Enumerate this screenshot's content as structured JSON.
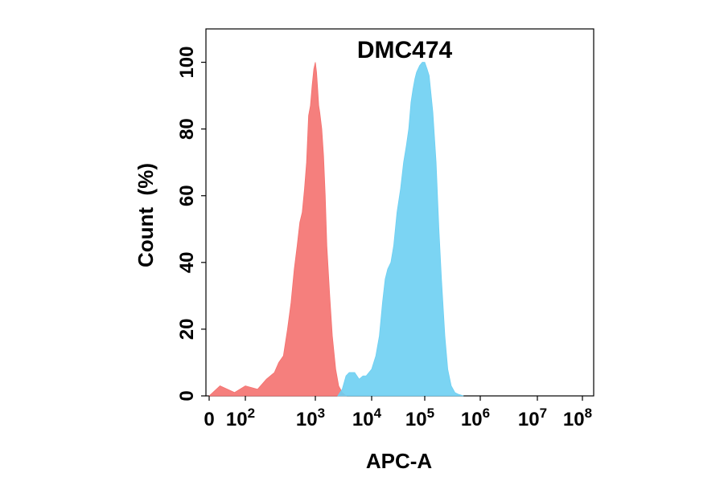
{
  "chart_data": {
    "type": "area",
    "title": "DMC474",
    "xlabel": "APC-A",
    "ylabel": "Count  (%)",
    "x_scale": "biexponential",
    "x_ticks": [
      {
        "value": 0,
        "base": "0",
        "exp": ""
      },
      {
        "value": 100,
        "base": "10",
        "exp": "2"
      },
      {
        "value": 1000,
        "base": "10",
        "exp": "3"
      },
      {
        "value": 10000,
        "base": "10",
        "exp": "4"
      },
      {
        "value": 100000,
        "base": "10",
        "exp": "5"
      },
      {
        "value": 1000000,
        "base": "10",
        "exp": "6"
      },
      {
        "value": 10000000,
        "base": "10",
        "exp": "7"
      },
      {
        "value": 100000000,
        "base": "10",
        "exp": "8"
      }
    ],
    "y_ticks": [
      "0",
      "20",
      "40",
      "60",
      "80",
      "100"
    ],
    "ylim": [
      0,
      110
    ],
    "grid": false,
    "legend": "none",
    "series": [
      {
        "color": "#f4716f",
        "x": [
          0,
          30,
          70,
          100,
          150,
          200,
          260,
          300,
          350,
          400,
          450,
          500,
          550,
          600,
          650,
          700,
          750,
          800,
          850,
          900,
          950,
          1000,
          1050,
          1100,
          1150,
          1200,
          1300,
          1400,
          1500,
          1600,
          1800,
          2000,
          2300,
          2600,
          3000,
          3500
        ],
        "y": [
          0,
          3,
          1,
          3,
          2,
          5,
          7,
          10,
          12,
          20,
          28,
          38,
          45,
          52,
          55,
          62,
          70,
          84,
          87,
          93,
          98,
          100,
          97,
          92,
          87,
          85,
          80,
          72,
          60,
          45,
          30,
          18,
          8,
          3,
          1,
          0
        ]
      },
      {
        "color": "#6dcff2",
        "x": [
          2500,
          3000,
          3500,
          4000,
          5000,
          6000,
          7000,
          8000,
          10000,
          12000,
          14000,
          16000,
          18000,
          20000,
          23000,
          26000,
          30000,
          35000,
          40000,
          45000,
          50000,
          55000,
          60000,
          65000,
          70000,
          80000,
          90000,
          100000,
          110000,
          120000,
          140000,
          160000,
          180000,
          200000,
          230000,
          260000,
          300000,
          350000,
          400000,
          500000
        ],
        "y": [
          0,
          2,
          6,
          7,
          7,
          5,
          6,
          6,
          8,
          12,
          18,
          28,
          35,
          38,
          40,
          45,
          55,
          62,
          70,
          75,
          80,
          88,
          92,
          95,
          97,
          99,
          100,
          100,
          98,
          96,
          85,
          70,
          50,
          35,
          18,
          8,
          3,
          1,
          0.5,
          0
        ]
      }
    ]
  }
}
